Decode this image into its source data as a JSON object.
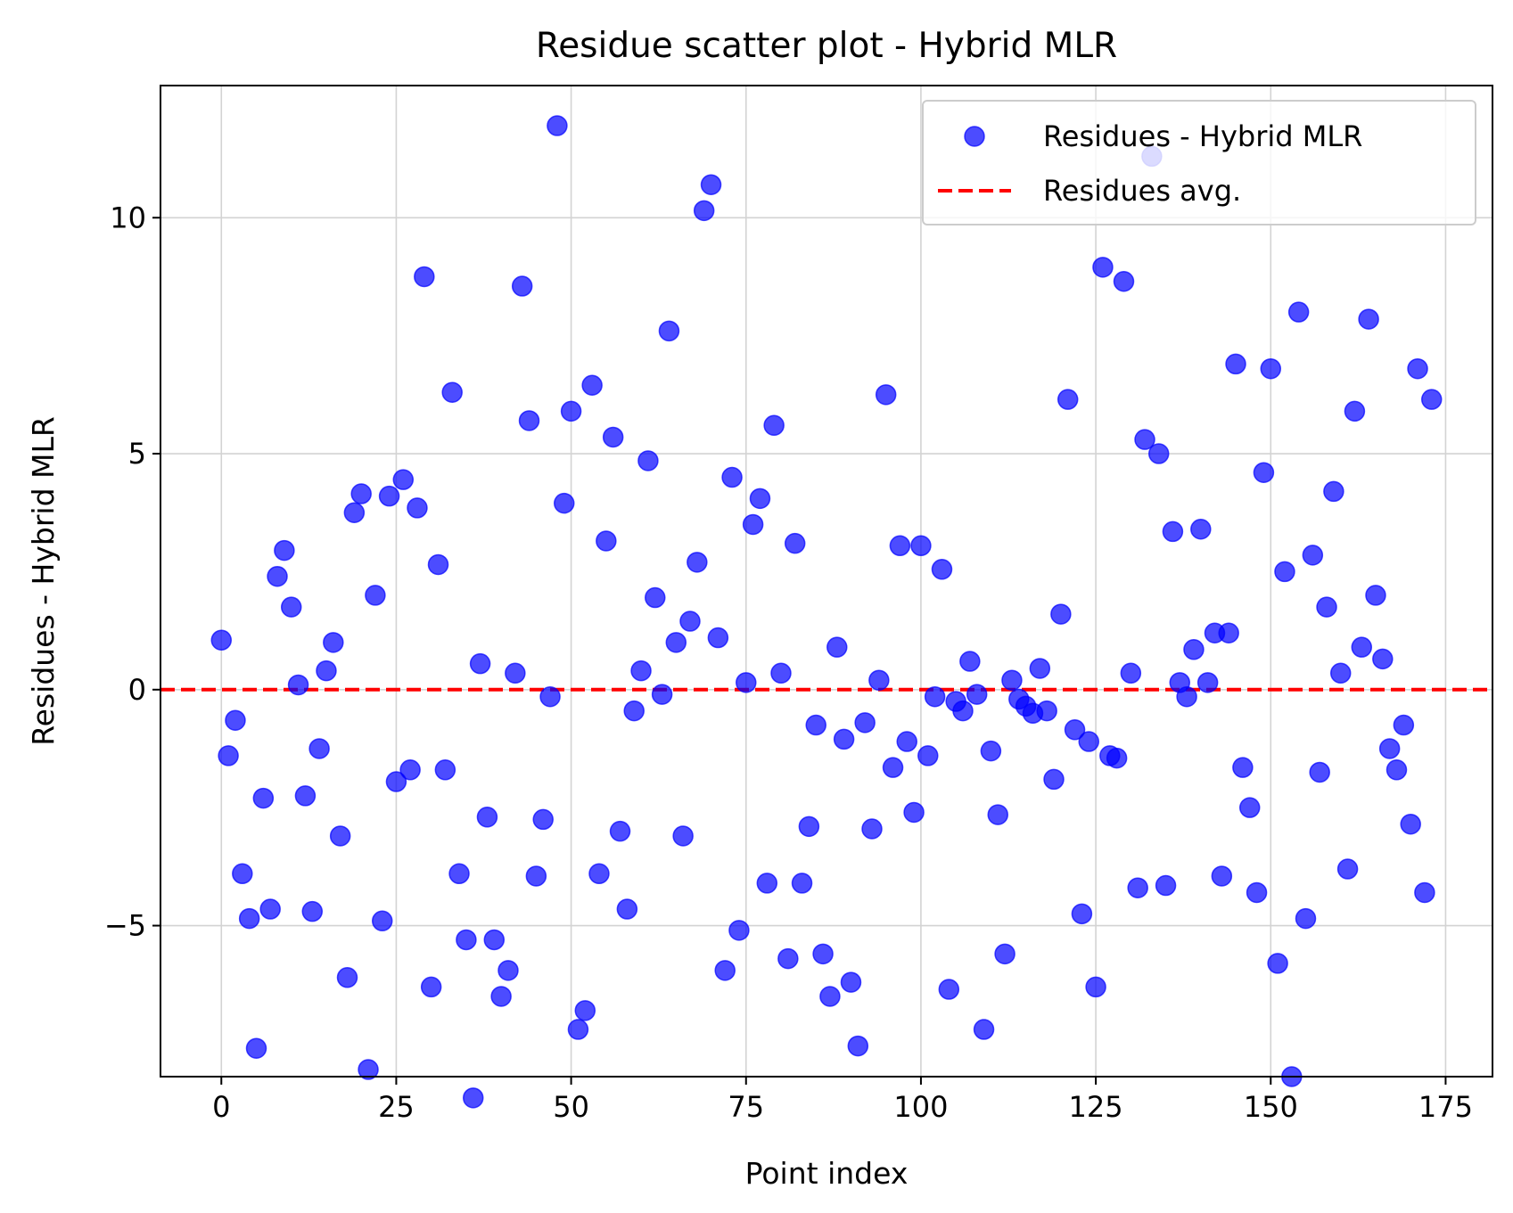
{
  "chart_data": {
    "type": "scatter",
    "title": "Residue scatter plot - Hybrid MLR",
    "xlabel": "Point index",
    "ylabel": "Residues - Hybrid MLR",
    "xlim": [
      -8.7,
      181.7
    ],
    "ylim": [
      -8.2,
      12.8
    ],
    "xticks": [
      0,
      25,
      50,
      75,
      100,
      125,
      150,
      175
    ],
    "xtick_labels": [
      "0",
      "25",
      "50",
      "75",
      "100",
      "125",
      "150",
      "175"
    ],
    "yticks": [
      -5,
      0,
      5,
      10
    ],
    "ytick_labels": [
      "−5",
      "0",
      "5",
      "10"
    ],
    "grid": true,
    "legend_position": "top-right",
    "colors": {
      "points": "#0000ff",
      "avg_line": "#ff0000",
      "grid": "#d3d3d3"
    },
    "series": [
      {
        "name": "Residues - Hybrid MLR",
        "kind": "scatter",
        "x": [
          0,
          1,
          2,
          3,
          4,
          5,
          6,
          7,
          8,
          9,
          10,
          11,
          12,
          13,
          14,
          15,
          16,
          17,
          18,
          19,
          20,
          21,
          22,
          23,
          24,
          25,
          26,
          27,
          28,
          29,
          30,
          31,
          32,
          33,
          34,
          35,
          36,
          37,
          38,
          39,
          40,
          41,
          42,
          43,
          44,
          45,
          46,
          47,
          48,
          49,
          50,
          51,
          52,
          53,
          54,
          55,
          56,
          57,
          58,
          59,
          60,
          61,
          62,
          63,
          64,
          65,
          66,
          67,
          68,
          69,
          70,
          71,
          72,
          73,
          74,
          75,
          76,
          77,
          78,
          79,
          80,
          81,
          82,
          83,
          84,
          85,
          86,
          87,
          88,
          89,
          90,
          91,
          92,
          93,
          94,
          95,
          96,
          97,
          98,
          99,
          100,
          101,
          102,
          103,
          104,
          105,
          106,
          107,
          108,
          109,
          110,
          111,
          112,
          113,
          114,
          115,
          116,
          117,
          118,
          119,
          120,
          121,
          122,
          123,
          124,
          125,
          126,
          127,
          128,
          129,
          130,
          131,
          132,
          133,
          134,
          135,
          136,
          137,
          138,
          139,
          140,
          141,
          142,
          143,
          144,
          145,
          146,
          147,
          148,
          149,
          150,
          151,
          152,
          153,
          154,
          155,
          156,
          157,
          158,
          159,
          160,
          161,
          162,
          163,
          164,
          165,
          166,
          167,
          168,
          169,
          170,
          171,
          172,
          173
        ],
        "y": [
          1.05,
          -1.4,
          -0.65,
          -3.9,
          -4.85,
          -7.6,
          -2.3,
          -4.65,
          2.4,
          2.95,
          1.75,
          0.1,
          -2.25,
          -4.7,
          -1.25,
          0.4,
          1.0,
          -3.1,
          -6.1,
          3.75,
          4.15,
          -8.05,
          2.0,
          -4.9,
          4.1,
          -1.95,
          4.45,
          -1.7,
          3.85,
          8.75,
          -6.3,
          2.65,
          -1.7,
          6.3,
          -3.9,
          -5.3,
          -8.65,
          0.55,
          -2.7,
          -5.3,
          -6.5,
          -5.95,
          0.35,
          8.55,
          5.7,
          -3.95,
          -2.75,
          -0.15,
          11.95,
          3.95,
          5.9,
          -7.2,
          -6.8,
          6.45,
          -3.9,
          3.15,
          5.35,
          -3.0,
          -4.65,
          -0.45,
          0.4,
          4.85,
          1.95,
          -0.1,
          7.6,
          1.0,
          -3.1,
          1.45,
          2.7,
          10.15,
          10.7,
          1.1,
          -5.95,
          4.5,
          -5.1,
          0.15,
          3.5,
          4.05,
          -4.1,
          5.6,
          0.35,
          -5.7,
          3.1,
          -4.1,
          -2.9,
          -0.75,
          -5.6,
          -6.5,
          0.9,
          -1.05,
          -6.2,
          -7.55,
          -0.7,
          -2.95,
          0.2,
          6.25,
          -1.65,
          3.05,
          -1.1,
          -2.6,
          3.05,
          -1.4,
          -0.15,
          2.55,
          -6.35,
          -0.25,
          -0.45,
          0.6,
          -0.1,
          -7.2,
          -1.3,
          -2.65,
          -5.6,
          0.2,
          -0.2,
          -0.35,
          -0.5,
          0.45,
          -0.45,
          -1.9,
          1.6,
          6.15,
          -0.85,
          -4.75,
          -1.1,
          -6.3,
          8.95,
          -1.4,
          -1.45,
          8.65,
          0.35,
          -4.2,
          5.3,
          11.3,
          5.0,
          -4.15,
          3.35,
          0.15,
          -0.15,
          0.85,
          3.4,
          0.15,
          1.2,
          -3.95,
          1.2,
          6.9,
          -1.65,
          -2.5,
          -4.3,
          4.6,
          6.8,
          -5.8,
          2.5,
          -8.2,
          8.0,
          -4.85,
          2.85,
          -1.75,
          1.75,
          4.2,
          0.35,
          -3.8,
          5.9,
          0.9,
          7.85,
          2.0,
          0.65,
          -1.25,
          -1.7,
          -0.75,
          -2.85,
          6.8,
          -4.3,
          6.15
        ]
      },
      {
        "name": "Residues avg.",
        "kind": "hline",
        "y": 0
      }
    ]
  }
}
